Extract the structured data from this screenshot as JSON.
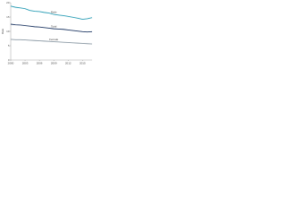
{
  "chart_data": {
    "type": "line",
    "y_label": "Rate",
    "x": [
      2000,
      2001,
      2002,
      2003,
      2004,
      2005,
      2006,
      2007,
      2008,
      2009,
      2010,
      2011,
      2012,
      2013,
      2014,
      2015,
      2016,
      2017
    ],
    "xlim": [
      2000,
      2017
    ],
    "xticks": [
      2000,
      2003,
      2006,
      2009,
      2012,
      2015
    ],
    "ylim": [
      0,
      20
    ],
    "yticks": [
      0,
      5,
      10,
      15,
      20
    ],
    "grid": false,
    "series": [
      {
        "name": "Male",
        "color": "#2a9db5",
        "values": [
          18.8,
          18.4,
          18.2,
          17.9,
          17.3,
          17.0,
          16.9,
          16.6,
          16.4,
          15.9,
          15.7,
          15.5,
          15.2,
          14.9,
          14.6,
          14.2,
          14.4,
          14.8
        ]
      },
      {
        "name": "Total",
        "color": "#1f3864",
        "values": [
          12.5,
          12.3,
          12.2,
          12.0,
          11.8,
          11.6,
          11.5,
          11.3,
          11.1,
          10.9,
          10.8,
          10.7,
          10.5,
          10.3,
          10.1,
          9.9,
          9.8,
          9.9
        ]
      },
      {
        "name": "Female",
        "color": "#8c9aa5",
        "values": [
          7.2,
          7.1,
          7.1,
          7.0,
          6.9,
          6.8,
          6.7,
          6.6,
          6.5,
          6.4,
          6.3,
          6.2,
          6.1,
          6.0,
          5.9,
          5.8,
          5.7,
          5.6
        ]
      }
    ]
  }
}
